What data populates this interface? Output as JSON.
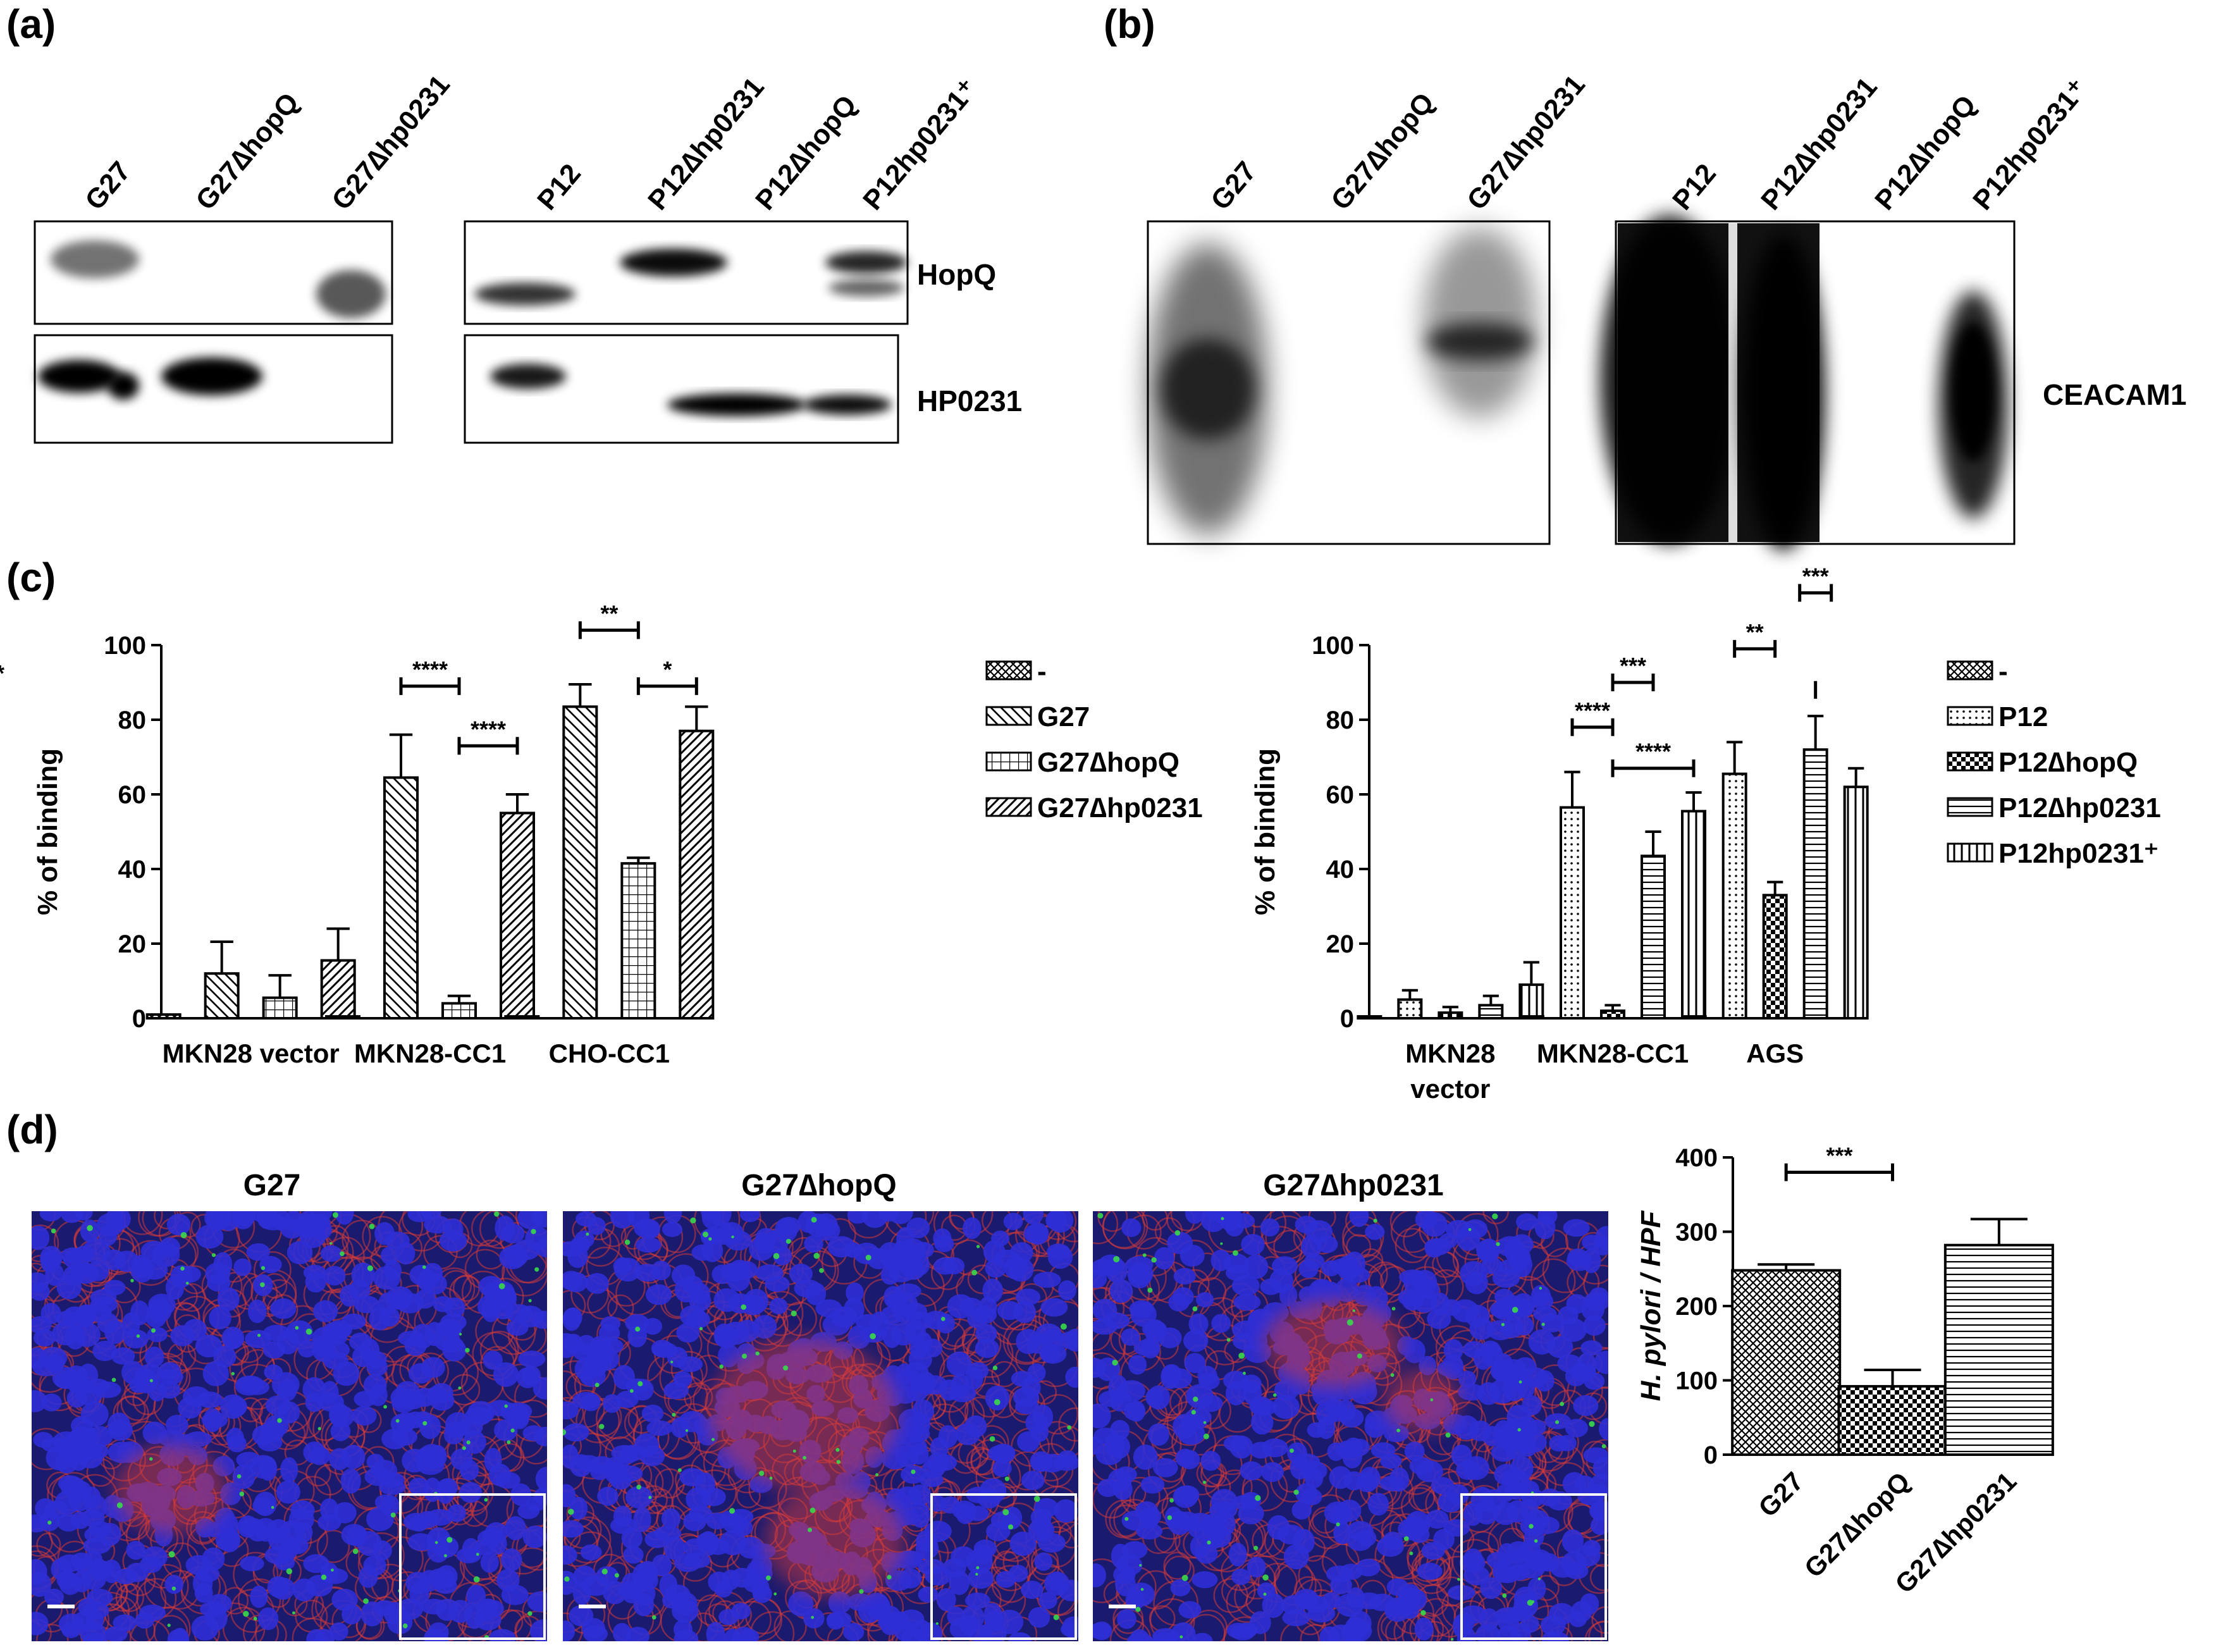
{
  "panels": {
    "a": {
      "letter": "(a)",
      "lanes_left": [
        "G27",
        "G27∆hopQ",
        "G27∆hp0231"
      ],
      "lanes_right": [
        "P12",
        "P12∆hp0231",
        "P12∆hopQ",
        "P12hp0231⁺"
      ],
      "blot_labels": [
        "HopQ",
        "HP0231"
      ]
    },
    "b": {
      "letter": "(b)",
      "lanes_left": [
        "G27",
        "G27∆hopQ",
        "G27∆hp0231"
      ],
      "lanes_right": [
        "P12",
        "P12∆hp0231",
        "P12∆hopQ",
        "P12hp0231⁺"
      ],
      "blot_label": "CEACAM1"
    },
    "c": {
      "letter": "(c)"
    },
    "d": {
      "letter": "(d)",
      "image_titles": [
        "G27",
        "G27∆hopQ",
        "G27∆hp0231"
      ]
    }
  },
  "colors": {
    "micro_bg": "#1a1a6e",
    "nucleus": "#2f2fd6",
    "membrane": "#d23a3a",
    "bacteria": "#39d94a"
  },
  "chart_data": [
    {
      "id": "c-left",
      "type": "bar",
      "ylabel": "% of binding",
      "ylim": [
        0,
        100
      ],
      "yticks": [
        0,
        20,
        40,
        60,
        80,
        100
      ],
      "categories": [
        "MKN28 vector",
        "MKN28-CC1",
        "CHO-CC1"
      ],
      "series": [
        {
          "name": "-",
          "pattern": "crosshatch",
          "values": [
            1,
            0.5,
            0.5
          ],
          "errors": [
            0,
            0,
            0
          ]
        },
        {
          "name": "G27",
          "pattern": "diag-back",
          "values": [
            12,
            64.5,
            83.5
          ],
          "errors": [
            8.5,
            11.5,
            6
          ]
        },
        {
          "name": "G27∆hopQ",
          "pattern": "grid",
          "values": [
            5.5,
            4,
            41.5
          ],
          "errors": [
            6,
            2,
            1.5
          ]
        },
        {
          "name": "G27∆hp0231",
          "pattern": "diag-fwd",
          "values": [
            15.5,
            55,
            77
          ],
          "errors": [
            8.5,
            5,
            6.5
          ]
        }
      ],
      "significance": [
        {
          "label": "****",
          "category": 1,
          "from": 1,
          "to": 2,
          "y": 89
        },
        {
          "label": "****",
          "category": 1,
          "from": 2,
          "to": 3,
          "y": 73
        },
        {
          "label": "**",
          "category": 2,
          "from": 1,
          "to": 2,
          "y": 104
        },
        {
          "label": "*",
          "category": 2,
          "from": 2,
          "to": 3,
          "y": 89
        }
      ]
    },
    {
      "id": "c-right",
      "type": "bar",
      "ylabel": "% of binding",
      "ylim": [
        0,
        100
      ],
      "yticks": [
        0,
        20,
        40,
        60,
        80,
        100
      ],
      "categories": [
        "MKN28 vector",
        "MKN28-CC1",
        "AGS"
      ],
      "category_lines": [
        [
          "MKN28",
          "vector"
        ],
        [
          "MKN28-CC1"
        ],
        [
          "AGS"
        ]
      ],
      "series": [
        {
          "name": "-",
          "pattern": "crosshatch",
          "values": [
            0.5,
            0.5,
            0.5
          ],
          "errors": [
            0,
            0,
            0
          ]
        },
        {
          "name": "P12",
          "pattern": "dots",
          "values": [
            5,
            56.5,
            65.5
          ],
          "errors": [
            2.5,
            9.5,
            8.5
          ]
        },
        {
          "name": "P12∆hopQ",
          "pattern": "checker",
          "values": [
            1.5,
            2,
            33
          ],
          "errors": [
            1.5,
            1.5,
            3.5
          ]
        },
        {
          "name": "P12∆hp0231",
          "pattern": "hlines",
          "values": [
            3.5,
            43.5,
            72
          ],
          "errors": [
            2.5,
            6.5,
            9
          ]
        },
        {
          "name": "P12hp0231⁺",
          "pattern": "vlines",
          "values": [
            9,
            55.5,
            62
          ],
          "errors": [
            6,
            5,
            5
          ]
        }
      ],
      "significance": [
        {
          "label": "****",
          "category": 1,
          "from": 1,
          "to": 2,
          "y": 78
        },
        {
          "label": "***",
          "category": 1,
          "from": 2,
          "to": 3,
          "y": 90
        },
        {
          "label": "****",
          "category": 1,
          "from": 2,
          "to": 4,
          "y": 67
        },
        {
          "label": "**",
          "category": 2,
          "from": 1,
          "to": 2,
          "y": 99
        },
        {
          "label": "***",
          "category": 2,
          "from": 3,
          "to": 3,
          "y": 114
        },
        {
          "label": "*",
          "category": 2,
          "from": 3,
          "to": 5,
          "y": 88
        }
      ]
    },
    {
      "id": "d-right",
      "type": "bar",
      "ylabel": "H. pylori / HPF",
      "ylim": [
        0,
        400
      ],
      "yticks": [
        0,
        100,
        200,
        300,
        400
      ],
      "categories": [
        "G27",
        "G27∆hopQ",
        "G27∆hp0231"
      ],
      "series": [
        {
          "name": "",
          "patterns": [
            "crosshatch",
            "checker",
            "hlines"
          ],
          "values": [
            248,
            92,
            282
          ],
          "errors": [
            8,
            22,
            35
          ]
        }
      ],
      "significance": [
        {
          "label": "***",
          "from": 0,
          "to": 1,
          "y": 380
        }
      ]
    }
  ]
}
